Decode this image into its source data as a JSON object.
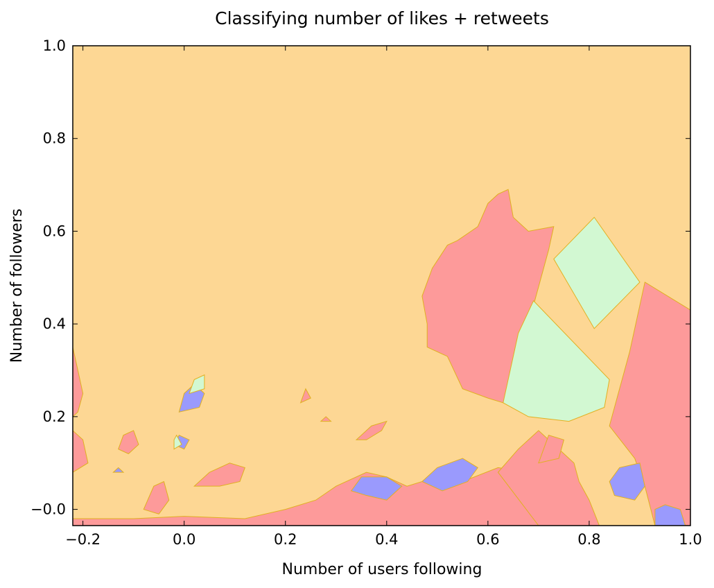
{
  "chart_data": {
    "type": "heatmap",
    "title": "Classifying number of likes + retweets",
    "xlabel": "Number of users following",
    "ylabel": "Number of followers",
    "xlim": [
      -0.22,
      1.0
    ],
    "ylim": [
      -0.035,
      1.0
    ],
    "xticks": [
      -0.2,
      0.0,
      0.2,
      0.4,
      0.6,
      0.8,
      1.0
    ],
    "xtick_labels": [
      "−0.2",
      "0.0",
      "0.2",
      "0.4",
      "0.6",
      "0.8",
      "1.0"
    ],
    "yticks": [
      0.0,
      0.2,
      0.4,
      0.6,
      0.8,
      1.0
    ],
    "ytick_labels": [
      "−0.0",
      "0.2",
      "0.4",
      "0.6",
      "0.8",
      "1.0"
    ],
    "grid": false,
    "background_class_color": "#fdd794",
    "class_colors": [
      "#fdd794",
      "#fd9a9a",
      "#9a9afd",
      "#d2f8d2"
    ],
    "regions": [
      {
        "class": 1,
        "points": [
          [
            0.48,
            0.4
          ],
          [
            0.47,
            0.46
          ],
          [
            0.49,
            0.52
          ],
          [
            0.52,
            0.57
          ],
          [
            0.54,
            0.58
          ],
          [
            0.58,
            0.61
          ],
          [
            0.6,
            0.66
          ],
          [
            0.62,
            0.68
          ],
          [
            0.64,
            0.69
          ],
          [
            0.65,
            0.63
          ],
          [
            0.68,
            0.6
          ],
          [
            0.73,
            0.61
          ],
          [
            0.72,
            0.56
          ],
          [
            0.69,
            0.44
          ],
          [
            0.65,
            0.26
          ],
          [
            0.63,
            0.23
          ],
          [
            0.6,
            0.24
          ],
          [
            0.55,
            0.26
          ],
          [
            0.52,
            0.33
          ],
          [
            0.48,
            0.35
          ]
        ]
      },
      {
        "class": 3,
        "points": [
          [
            0.73,
            0.54
          ],
          [
            0.81,
            0.63
          ],
          [
            0.9,
            0.49
          ],
          [
            0.81,
            0.39
          ]
        ]
      },
      {
        "class": 3,
        "points": [
          [
            0.69,
            0.45
          ],
          [
            0.66,
            0.38
          ],
          [
            0.63,
            0.23
          ],
          [
            0.68,
            0.2
          ],
          [
            0.76,
            0.19
          ],
          [
            0.83,
            0.22
          ],
          [
            0.84,
            0.28
          ]
        ]
      },
      {
        "class": 1,
        "points": [
          [
            0.91,
            0.49
          ],
          [
            1.0,
            0.43
          ],
          [
            1.0,
            -0.035
          ],
          [
            0.93,
            -0.035
          ],
          [
            0.91,
            0.05
          ],
          [
            0.89,
            0.11
          ],
          [
            0.84,
            0.18
          ],
          [
            0.86,
            0.26
          ],
          [
            0.88,
            0.34
          ]
        ]
      },
      {
        "class": 2,
        "points": [
          [
            0.84,
            0.06
          ],
          [
            0.86,
            0.09
          ],
          [
            0.9,
            0.1
          ],
          [
            0.91,
            0.05
          ],
          [
            0.89,
            0.02
          ],
          [
            0.85,
            0.03
          ]
        ]
      },
      {
        "class": 2,
        "points": [
          [
            0.93,
            0.0
          ],
          [
            0.95,
            0.01
          ],
          [
            0.98,
            0.0
          ],
          [
            0.99,
            -0.035
          ],
          [
            0.93,
            -0.035
          ]
        ]
      },
      {
        "class": 1,
        "points": [
          [
            -0.22,
            -0.035
          ],
          [
            0.7,
            -0.035
          ],
          [
            0.7,
            0.05
          ],
          [
            0.68,
            0.08
          ],
          [
            0.62,
            0.09
          ],
          [
            0.55,
            0.06
          ],
          [
            0.5,
            0.07
          ],
          [
            0.44,
            0.05
          ],
          [
            0.4,
            0.07
          ],
          [
            0.36,
            0.08
          ],
          [
            0.3,
            0.05
          ],
          [
            0.26,
            0.02
          ],
          [
            0.2,
            0.0
          ],
          [
            0.12,
            -0.02
          ],
          [
            0.0,
            -0.015
          ],
          [
            -0.1,
            -0.02
          ],
          [
            -0.22,
            -0.02
          ]
        ]
      },
      {
        "class": 1,
        "points": [
          [
            0.62,
            0.08
          ],
          [
            0.66,
            0.13
          ],
          [
            0.7,
            0.17
          ],
          [
            0.74,
            0.13
          ],
          [
            0.77,
            0.1
          ],
          [
            0.78,
            0.06
          ],
          [
            0.8,
            0.02
          ],
          [
            0.82,
            -0.035
          ],
          [
            0.7,
            -0.035
          ]
        ]
      },
      {
        "class": 2,
        "points": [
          [
            0.47,
            0.06
          ],
          [
            0.5,
            0.09
          ],
          [
            0.55,
            0.11
          ],
          [
            0.58,
            0.09
          ],
          [
            0.56,
            0.06
          ],
          [
            0.51,
            0.04
          ]
        ]
      },
      {
        "class": 2,
        "points": [
          [
            0.33,
            0.04
          ],
          [
            0.35,
            0.07
          ],
          [
            0.4,
            0.07
          ],
          [
            0.43,
            0.05
          ],
          [
            0.4,
            0.02
          ],
          [
            0.36,
            0.03
          ]
        ]
      },
      {
        "class": 1,
        "points": [
          [
            0.02,
            0.05
          ],
          [
            0.05,
            0.08
          ],
          [
            0.09,
            0.1
          ],
          [
            0.12,
            0.09
          ],
          [
            0.11,
            0.06
          ],
          [
            0.07,
            0.05
          ]
        ]
      },
      {
        "class": 2,
        "points": [
          [
            -0.01,
            0.21
          ],
          [
            0.0,
            0.25
          ],
          [
            0.02,
            0.27
          ],
          [
            0.04,
            0.25
          ],
          [
            0.03,
            0.22
          ]
        ]
      },
      {
        "class": 3,
        "points": [
          [
            0.01,
            0.25
          ],
          [
            0.02,
            0.28
          ],
          [
            0.04,
            0.29
          ],
          [
            0.04,
            0.26
          ]
        ]
      },
      {
        "class": 2,
        "points": [
          [
            -0.02,
            0.14
          ],
          [
            -0.01,
            0.16
          ],
          [
            0.01,
            0.15
          ],
          [
            0.0,
            0.13
          ]
        ]
      },
      {
        "class": 3,
        "points": [
          [
            -0.02,
            0.15
          ],
          [
            -0.015,
            0.16
          ],
          [
            -0.005,
            0.14
          ],
          [
            -0.02,
            0.13
          ]
        ]
      },
      {
        "class": 1,
        "points": [
          [
            -0.22,
            0.35
          ],
          [
            -0.21,
            0.3
          ],
          [
            -0.2,
            0.25
          ],
          [
            -0.21,
            0.21
          ],
          [
            -0.22,
            0.2
          ]
        ]
      },
      {
        "class": 1,
        "points": [
          [
            -0.22,
            0.17
          ],
          [
            -0.2,
            0.15
          ],
          [
            -0.19,
            0.1
          ],
          [
            -0.22,
            0.08
          ]
        ]
      },
      {
        "class": 1,
        "points": [
          [
            -0.13,
            0.13
          ],
          [
            -0.12,
            0.16
          ],
          [
            -0.1,
            0.17
          ],
          [
            -0.09,
            0.14
          ],
          [
            -0.11,
            0.12
          ]
        ]
      },
      {
        "class": 1,
        "points": [
          [
            0.34,
            0.15
          ],
          [
            0.37,
            0.18
          ],
          [
            0.4,
            0.19
          ],
          [
            0.39,
            0.17
          ],
          [
            0.36,
            0.15
          ]
        ]
      },
      {
        "class": 1,
        "points": [
          [
            0.23,
            0.23
          ],
          [
            0.24,
            0.26
          ],
          [
            0.25,
            0.24
          ]
        ]
      },
      {
        "class": 1,
        "points": [
          [
            0.27,
            0.19
          ],
          [
            0.28,
            0.2
          ],
          [
            0.29,
            0.19
          ]
        ]
      },
      {
        "class": 1,
        "points": [
          [
            0.7,
            0.1
          ],
          [
            0.72,
            0.16
          ],
          [
            0.75,
            0.15
          ],
          [
            0.74,
            0.11
          ]
        ]
      },
      {
        "class": 2,
        "points": [
          [
            -0.14,
            0.08
          ],
          [
            -0.13,
            0.09
          ],
          [
            -0.12,
            0.08
          ]
        ]
      },
      {
        "class": 1,
        "points": [
          [
            -0.08,
            0.0
          ],
          [
            -0.06,
            0.05
          ],
          [
            -0.04,
            0.06
          ],
          [
            -0.03,
            0.02
          ],
          [
            -0.05,
            -0.01
          ]
        ]
      }
    ]
  }
}
